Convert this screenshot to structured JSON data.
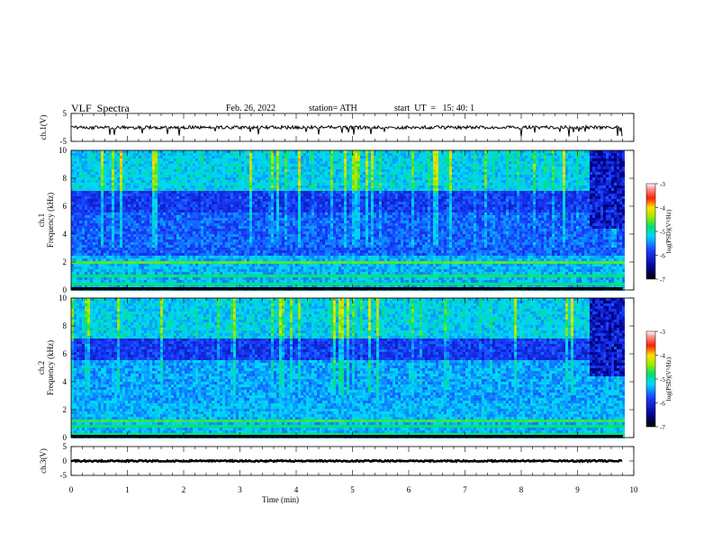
{
  "header": {
    "title": "VLF  Spectra",
    "date": "Feb. 26, 2022",
    "station": "station= ATH",
    "start_ut": "start  UT  =   15: 40: 1"
  },
  "chart_data": {
    "type": "heatmap",
    "xlabel": "Time  (min)",
    "xlim": [
      0,
      10
    ],
    "x_ticks": [
      "0",
      "1",
      "2",
      "3",
      "4",
      "5",
      "6",
      "7",
      "8",
      "9",
      "10"
    ],
    "panels": [
      {
        "id": "ch1-waveform",
        "kind": "line",
        "ylabel": "ch.1(V)",
        "ylim": [
          -5,
          5
        ],
        "y_ticks": [
          "5",
          "-5"
        ],
        "baseline": 0,
        "noise_amplitude": 0.6,
        "data_end_min": 9.8
      },
      {
        "id": "ch1-spectrogram",
        "kind": "heatmap",
        "ylabel_top": "ch.1",
        "ylabel": "Frequency  (kHz)",
        "ylim": [
          0,
          10
        ],
        "y_ticks": [
          "0",
          "2",
          "4",
          "6",
          "8",
          "10"
        ],
        "data_end_min": 9.8,
        "colorbar": {
          "label": "log(PSD)(V²/Hz)",
          "range": [
            -7,
            -3
          ],
          "ticks": [
            "-3",
            "-4",
            "-5",
            "-6",
            "-7"
          ]
        }
      },
      {
        "id": "ch2-spectrogram",
        "kind": "heatmap",
        "ylabel_top": "ch.2",
        "ylabel": "Frequency  (kHz)",
        "ylim": [
          0,
          10
        ],
        "y_ticks": [
          "0",
          "2",
          "4",
          "6",
          "8",
          "10"
        ],
        "data_end_min": 9.8,
        "colorbar": {
          "label": "log(PSD)(V²/Hz)",
          "range": [
            -7,
            -3
          ],
          "ticks": [
            "-3",
            "-4",
            "-5",
            "-6",
            "-7"
          ]
        }
      },
      {
        "id": "ch3-waveform",
        "kind": "line",
        "ylabel": "ch.3(V)",
        "ylim": [
          -5,
          5
        ],
        "y_ticks": [
          "5",
          "0",
          "-5"
        ],
        "baseline": 0,
        "noise_amplitude": 0.25,
        "data_end_min": 9.8
      }
    ]
  }
}
